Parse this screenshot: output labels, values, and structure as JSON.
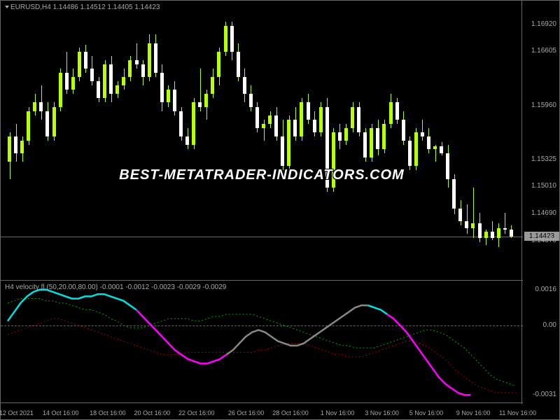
{
  "main": {
    "title": "EURUSD,H4  1.14486 1.14512 1.14405 1.14423",
    "watermark": "BEST-METATRADER-INDICATORS.COM",
    "ylim": [
      1.139,
      1.172
    ],
    "yticks": [
      1.1692,
      1.16605,
      1.1596,
      1.15325,
      1.1501,
      1.1469,
      1.1437
    ],
    "price_tag": 1.14423,
    "price_line_y": 1.14423,
    "bg_color": "#000000",
    "bull_color": "#b8ff00",
    "bear_color": "#ffffff",
    "wick_color": "#b8ff00",
    "candles": [
      {
        "o": 1.153,
        "h": 1.1565,
        "l": 1.151,
        "c": 1.156
      },
      {
        "o": 1.156,
        "h": 1.1575,
        "l": 1.153,
        "c": 1.154
      },
      {
        "o": 1.154,
        "h": 1.156,
        "l": 1.153,
        "c": 1.1555
      },
      {
        "o": 1.1555,
        "h": 1.1595,
        "l": 1.155,
        "c": 1.159
      },
      {
        "o": 1.159,
        "h": 1.161,
        "l": 1.1585,
        "c": 1.16
      },
      {
        "o": 1.16,
        "h": 1.162,
        "l": 1.158,
        "c": 1.159
      },
      {
        "o": 1.159,
        "h": 1.16,
        "l": 1.1555,
        "c": 1.156
      },
      {
        "o": 1.156,
        "h": 1.16,
        "l": 1.1555,
        "c": 1.1595
      },
      {
        "o": 1.1595,
        "h": 1.164,
        "l": 1.159,
        "c": 1.1635
      },
      {
        "o": 1.1635,
        "h": 1.166,
        "l": 1.161,
        "c": 1.1615
      },
      {
        "o": 1.1615,
        "h": 1.164,
        "l": 1.161,
        "c": 1.163
      },
      {
        "o": 1.163,
        "h": 1.1665,
        "l": 1.1625,
        "c": 1.166
      },
      {
        "o": 1.166,
        "h": 1.1668,
        "l": 1.1635,
        "c": 1.164
      },
      {
        "o": 1.164,
        "h": 1.1655,
        "l": 1.162,
        "c": 1.1625
      },
      {
        "o": 1.1625,
        "h": 1.163,
        "l": 1.16,
        "c": 1.1605
      },
      {
        "o": 1.1605,
        "h": 1.165,
        "l": 1.16,
        "c": 1.1645
      },
      {
        "o": 1.1645,
        "h": 1.1655,
        "l": 1.16,
        "c": 1.161
      },
      {
        "o": 1.161,
        "h": 1.1625,
        "l": 1.1605,
        "c": 1.162
      },
      {
        "o": 1.162,
        "h": 1.164,
        "l": 1.1615,
        "c": 1.163
      },
      {
        "o": 1.163,
        "h": 1.1655,
        "l": 1.1625,
        "c": 1.165
      },
      {
        "o": 1.165,
        "h": 1.167,
        "l": 1.164,
        "c": 1.1645
      },
      {
        "o": 1.1645,
        "h": 1.165,
        "l": 1.162,
        "c": 1.163
      },
      {
        "o": 1.163,
        "h": 1.168,
        "l": 1.1625,
        "c": 1.167
      },
      {
        "o": 1.167,
        "h": 1.168,
        "l": 1.163,
        "c": 1.1635
      },
      {
        "o": 1.1635,
        "h": 1.1645,
        "l": 1.159,
        "c": 1.16
      },
      {
        "o": 1.16,
        "h": 1.162,
        "l": 1.1595,
        "c": 1.1615
      },
      {
        "o": 1.1615,
        "h": 1.1625,
        "l": 1.1585,
        "c": 1.159
      },
      {
        "o": 1.159,
        "h": 1.1595,
        "l": 1.1555,
        "c": 1.156
      },
      {
        "o": 1.156,
        "h": 1.157,
        "l": 1.1545,
        "c": 1.155
      },
      {
        "o": 1.155,
        "h": 1.1605,
        "l": 1.1545,
        "c": 1.16
      },
      {
        "o": 1.16,
        "h": 1.164,
        "l": 1.159,
        "c": 1.1595
      },
      {
        "o": 1.1595,
        "h": 1.1615,
        "l": 1.158,
        "c": 1.161
      },
      {
        "o": 1.161,
        "h": 1.164,
        "l": 1.1605,
        "c": 1.163
      },
      {
        "o": 1.163,
        "h": 1.1665,
        "l": 1.162,
        "c": 1.166
      },
      {
        "o": 1.166,
        "h": 1.1695,
        "l": 1.1655,
        "c": 1.169
      },
      {
        "o": 1.169,
        "h": 1.1695,
        "l": 1.165,
        "c": 1.166
      },
      {
        "o": 1.166,
        "h": 1.167,
        "l": 1.1625,
        "c": 1.163
      },
      {
        "o": 1.163,
        "h": 1.164,
        "l": 1.16,
        "c": 1.161
      },
      {
        "o": 1.161,
        "h": 1.162,
        "l": 1.159,
        "c": 1.1595
      },
      {
        "o": 1.1595,
        "h": 1.16,
        "l": 1.1565,
        "c": 1.157
      },
      {
        "o": 1.157,
        "h": 1.158,
        "l": 1.1555,
        "c": 1.1575
      },
      {
        "o": 1.1575,
        "h": 1.159,
        "l": 1.157,
        "c": 1.1585
      },
      {
        "o": 1.1585,
        "h": 1.1595,
        "l": 1.1555,
        "c": 1.156
      },
      {
        "o": 1.156,
        "h": 1.158,
        "l": 1.152,
        "c": 1.1525
      },
      {
        "o": 1.1525,
        "h": 1.1585,
        "l": 1.152,
        "c": 1.158
      },
      {
        "o": 1.158,
        "h": 1.1595,
        "l": 1.1555,
        "c": 1.156
      },
      {
        "o": 1.156,
        "h": 1.1605,
        "l": 1.1555,
        "c": 1.16
      },
      {
        "o": 1.16,
        "h": 1.161,
        "l": 1.1575,
        "c": 1.158
      },
      {
        "o": 1.158,
        "h": 1.159,
        "l": 1.156,
        "c": 1.1565
      },
      {
        "o": 1.1565,
        "h": 1.16,
        "l": 1.156,
        "c": 1.1595
      },
      {
        "o": 1.1595,
        "h": 1.1605,
        "l": 1.1495,
        "c": 1.15
      },
      {
        "o": 1.15,
        "h": 1.157,
        "l": 1.1495,
        "c": 1.1565
      },
      {
        "o": 1.1565,
        "h": 1.1575,
        "l": 1.1545,
        "c": 1.1555
      },
      {
        "o": 1.1555,
        "h": 1.1575,
        "l": 1.155,
        "c": 1.157
      },
      {
        "o": 1.157,
        "h": 1.16,
        "l": 1.1565,
        "c": 1.1595
      },
      {
        "o": 1.1595,
        "h": 1.16,
        "l": 1.156,
        "c": 1.1565
      },
      {
        "o": 1.1565,
        "h": 1.157,
        "l": 1.153,
        "c": 1.1535
      },
      {
        "o": 1.1535,
        "h": 1.1575,
        "l": 1.153,
        "c": 1.157
      },
      {
        "o": 1.157,
        "h": 1.158,
        "l": 1.1538,
        "c": 1.1545
      },
      {
        "o": 1.1545,
        "h": 1.158,
        "l": 1.154,
        "c": 1.1575
      },
      {
        "o": 1.1575,
        "h": 1.161,
        "l": 1.157,
        "c": 1.16
      },
      {
        "o": 1.16,
        "h": 1.1605,
        "l": 1.1575,
        "c": 1.158
      },
      {
        "o": 1.158,
        "h": 1.159,
        "l": 1.155,
        "c": 1.1555
      },
      {
        "o": 1.1555,
        "h": 1.156,
        "l": 1.152,
        "c": 1.1525
      },
      {
        "o": 1.1525,
        "h": 1.157,
        "l": 1.152,
        "c": 1.1565
      },
      {
        "o": 1.1565,
        "h": 1.158,
        "l": 1.1555,
        "c": 1.156
      },
      {
        "o": 1.156,
        "h": 1.157,
        "l": 1.154,
        "c": 1.1545
      },
      {
        "o": 1.1545,
        "h": 1.155,
        "l": 1.153,
        "c": 1.1548
      },
      {
        "o": 1.1548,
        "h": 1.1553,
        "l": 1.1538,
        "c": 1.154
      },
      {
        "o": 1.154,
        "h": 1.155,
        "l": 1.15,
        "c": 1.151
      },
      {
        "o": 1.151,
        "h": 1.1515,
        "l": 1.1468,
        "c": 1.1475
      },
      {
        "o": 1.1475,
        "h": 1.1485,
        "l": 1.1455,
        "c": 1.146
      },
      {
        "o": 1.146,
        "h": 1.148,
        "l": 1.1445,
        "c": 1.1452
      },
      {
        "o": 1.1452,
        "h": 1.15,
        "l": 1.144,
        "c": 1.1458
      },
      {
        "o": 1.1458,
        "h": 1.147,
        "l": 1.1435,
        "c": 1.144
      },
      {
        "o": 1.144,
        "h": 1.145,
        "l": 1.1432,
        "c": 1.1448
      },
      {
        "o": 1.1448,
        "h": 1.146,
        "l": 1.1438,
        "c": 1.144
      },
      {
        "o": 1.144,
        "h": 1.1458,
        "l": 1.143,
        "c": 1.1452
      },
      {
        "o": 1.1452,
        "h": 1.147,
        "l": 1.1445,
        "c": 1.145
      },
      {
        "o": 1.145,
        "h": 1.1455,
        "l": 1.144,
        "c": 1.1442
      }
    ]
  },
  "indicator": {
    "title": "H4 velocity fl (50,20.00,80.00) -0.0001 -0.0012 -0.0023 -0.0029 -0.0029",
    "ylim": [
      -0.0035,
      0.002
    ],
    "yticks": [
      0.0016,
      0.0,
      -0.0031
    ],
    "zero_y": 0.0,
    "line_width": 2.5,
    "colors": {
      "cyan": "#00e0e0",
      "magenta": "#ff00ff",
      "gray": "#888888",
      "green_dot": "#00aa00",
      "red_dot": "#aa0000",
      "zero": "#666666"
    },
    "main_line": [
      {
        "seg": "cyan",
        "pts": [
          0.0002,
          0.0006,
          0.001,
          0.0013,
          0.0015,
          0.0016,
          0.0016,
          0.0015,
          0.0014,
          0.0013,
          0.0012,
          0.0012,
          0.0013,
          0.0013,
          0.0014,
          0.0014,
          0.0013,
          0.0012,
          0.0011,
          0.0009,
          0.0007
        ]
      },
      {
        "seg": "magenta",
        "pts": [
          0.0007,
          0.0004,
          0.0001,
          -0.0002,
          -0.0005,
          -0.0008,
          -0.0011,
          -0.0013,
          -0.0015,
          -0.0016,
          -0.0017,
          -0.0017,
          -0.0016,
          -0.0015,
          -0.0013
        ]
      },
      {
        "seg": "gray",
        "pts": [
          -0.0013,
          -0.0011,
          -0.0008,
          -0.0005,
          -0.0003,
          -0.0002,
          -0.0003,
          -0.0005,
          -0.0007,
          -0.0008,
          -0.0009,
          -0.0009,
          -0.0008,
          -0.0006,
          -0.0004,
          -0.0002,
          0.0,
          0.0002,
          0.0004,
          0.0006,
          0.0008,
          0.0009,
          0.0009
        ]
      },
      {
        "seg": "cyan",
        "pts": [
          0.0009,
          0.0008,
          0.0007,
          0.0005
        ]
      },
      {
        "seg": "magenta",
        "pts": [
          0.0005,
          0.0003,
          0.0,
          -0.0003,
          -0.0007,
          -0.0011,
          -0.0015,
          -0.0019,
          -0.0023,
          -0.0026,
          -0.0028,
          -0.003,
          -0.0031,
          -0.0031
        ]
      }
    ],
    "green_band": [
      0.001,
      0.0011,
      0.0012,
      0.0012,
      0.0012,
      0.0012,
      0.0011,
      0.0011,
      0.001,
      0.001,
      0.0009,
      0.0008,
      0.0007,
      0.0007,
      0.0006,
      0.0005,
      0.0003,
      0.0002,
      0.0,
      -0.0001,
      -0.0001,
      -0.0001,
      0.0,
      0.0001,
      0.0002,
      0.0003,
      0.0003,
      0.0003,
      0.0003,
      0.0002,
      0.0002,
      0.0003,
      0.0004,
      0.0004,
      0.0005,
      0.0005,
      0.0005,
      0.0005,
      0.0005,
      0.0004,
      0.0003,
      0.0002,
      0.0001,
      0.0,
      -0.0001,
      -0.0002,
      -0.0003,
      -0.0004,
      -0.0005,
      -0.0006,
      -0.0007,
      -0.0008,
      -0.0009,
      -0.0009,
      -0.001,
      -0.001,
      -0.001,
      -0.001,
      -0.0009,
      -0.0008,
      -0.0007,
      -0.0006,
      -0.0005,
      -0.0004,
      -0.0003,
      -0.0002,
      -0.0002,
      -0.0003,
      -0.0004,
      -0.0006,
      -0.0008,
      -0.001,
      -0.0013,
      -0.0016,
      -0.0019,
      -0.0022,
      -0.0024,
      -0.0025,
      -0.0026,
      -0.0027
    ],
    "red_band": [
      -0.0004,
      -0.0003,
      -0.0002,
      -0.0001,
      0.0,
      0.0001,
      0.0002,
      0.0003,
      0.0003,
      0.0002,
      0.0001,
      0.0,
      -0.0001,
      -0.0002,
      -0.0003,
      -0.0004,
      -0.0005,
      -0.0006,
      -0.0007,
      -0.0008,
      -0.0009,
      -0.001,
      -0.0011,
      -0.0012,
      -0.0013,
      -0.0013,
      -0.0013,
      -0.0013,
      -0.0012,
      -0.0012,
      -0.0012,
      -0.0012,
      -0.0012,
      -0.0012,
      -0.0012,
      -0.0012,
      -0.0012,
      -0.0012,
      -0.0012,
      -0.0011,
      -0.0011,
      -0.001,
      -0.0009,
      -0.0008,
      -0.0008,
      -0.0008,
      -0.0008,
      -0.0009,
      -0.001,
      -0.0011,
      -0.0012,
      -0.0013,
      -0.0013,
      -0.0014,
      -0.0014,
      -0.0014,
      -0.0013,
      -0.0012,
      -0.0011,
      -0.001,
      -0.0009,
      -0.0008,
      -0.0007,
      -0.0007,
      -0.0008,
      -0.0009,
      -0.0011,
      -0.0013,
      -0.0015,
      -0.0018,
      -0.0021,
      -0.0023,
      -0.0025,
      -0.0027,
      -0.0028,
      -0.0029,
      -0.003,
      -0.003,
      -0.003,
      -0.003
    ]
  },
  "xaxis": {
    "labels": [
      "12 Oct 2021",
      "14 Oct 16:00",
      "18 Oct 16:00",
      "20 Oct 16:00",
      "22 Oct 16:00",
      "26 Oct 16:00",
      "28 Oct 16:00",
      "1 Nov 16:00",
      "3 Nov 16:00",
      "5 Nov 16:00",
      "9 Nov 16:00",
      "11 Nov 16:00"
    ],
    "positions": [
      0.03,
      0.115,
      0.205,
      0.29,
      0.375,
      0.47,
      0.555,
      0.645,
      0.73,
      0.815,
      0.905,
      0.99
    ]
  }
}
